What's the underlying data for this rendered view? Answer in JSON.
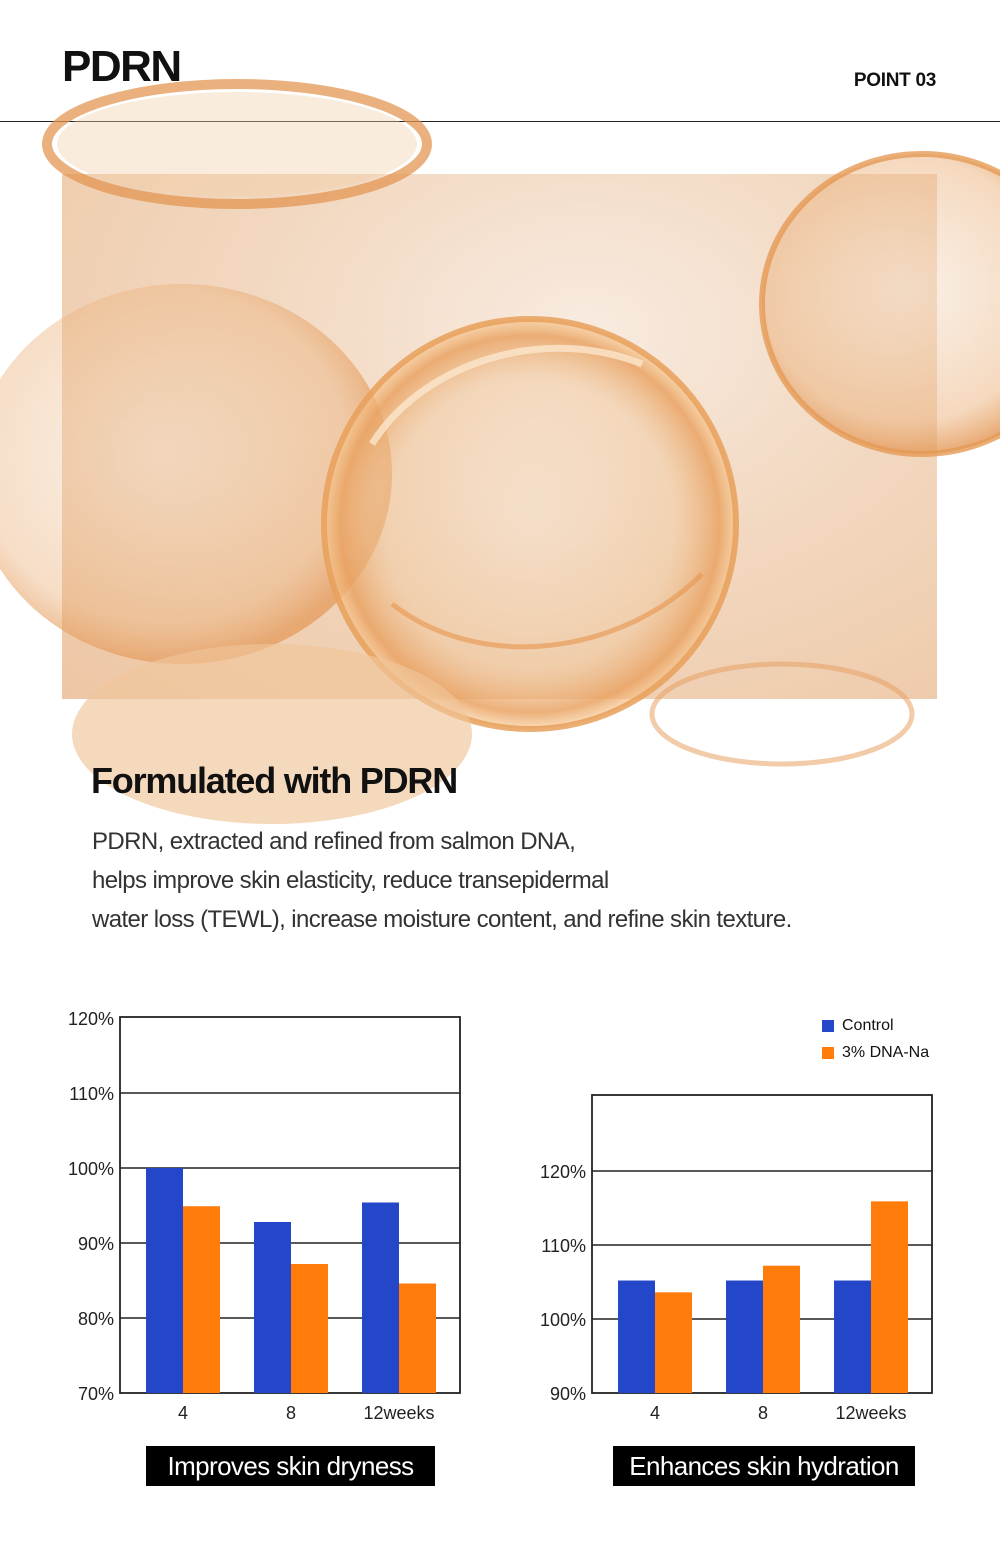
{
  "header": {
    "brand": "PDRN",
    "point": "POINT 03"
  },
  "section": {
    "heading": "Formulated with PDRN",
    "description_lines": [
      "PDRN, extracted and refined from salmon DNA,",
      "helps improve skin elasticity, reduce transepidermal",
      "water loss (TEWL), increase moisture content, and refine skin texture."
    ]
  },
  "colors": {
    "control": "#2446c8",
    "treatment": "#ff7b0a"
  },
  "legend": {
    "items": [
      "Control",
      "3% DNA-Na"
    ]
  },
  "chart_data": [
    {
      "type": "bar",
      "caption": "Improves skin dryness",
      "categories": [
        "4",
        "8",
        "12weeks"
      ],
      "series": [
        {
          "name": "Control",
          "values": [
            100,
            92.8,
            95.4
          ]
        },
        {
          "name": "3% DNA-Na",
          "values": [
            94.9,
            87.2,
            84.6
          ]
        }
      ],
      "ylim": [
        70,
        120
      ],
      "yticks": [
        "70%",
        "80%",
        "90%",
        "100%",
        "110%",
        "120%"
      ],
      "ytick_values": [
        70,
        80,
        90,
        100,
        110,
        120
      ],
      "grid": true
    },
    {
      "type": "bar",
      "caption": "Enhances skin hydration",
      "categories": [
        "4",
        "8",
        "12weeks"
      ],
      "series": [
        {
          "name": "Control",
          "values": [
            105.2,
            105.2,
            105.2
          ]
        },
        {
          "name": "3% DNA-Na",
          "values": [
            103.6,
            107.2,
            115.9
          ]
        }
      ],
      "ylim": [
        90,
        130
      ],
      "yticks": [
        "90%",
        "100%",
        "110%",
        "120%"
      ],
      "ytick_values": [
        90,
        100,
        110,
        120
      ],
      "grid": true,
      "legend_position": "top-right"
    }
  ]
}
